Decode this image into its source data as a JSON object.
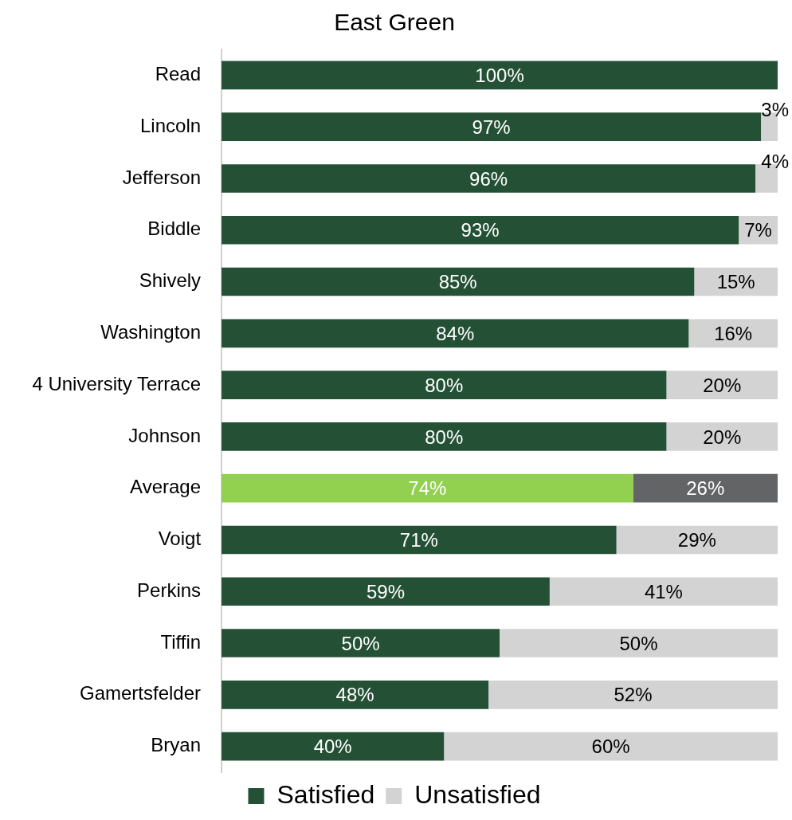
{
  "chart_data": {
    "type": "bar",
    "orientation": "horizontal",
    "stacked": true,
    "title": "East Green",
    "categories": [
      "Read",
      "Lincoln",
      "Jefferson",
      "Biddle",
      "Shively",
      "Washington",
      "4 University Terrace",
      "Johnson",
      "Average",
      "Voigt",
      "Perkins",
      "Tiffin",
      "Gamertsfelder",
      "Bryan"
    ],
    "series": [
      {
        "name": "Satisfied",
        "color": "#245135",
        "colors": [
          "#245135",
          "#245135",
          "#245135",
          "#245135",
          "#245135",
          "#245135",
          "#245135",
          "#245135",
          "#92d050",
          "#245135",
          "#245135",
          "#245135",
          "#245135",
          "#245135"
        ],
        "values": [
          100,
          97,
          96,
          93,
          85,
          84,
          80,
          80,
          74,
          71,
          59,
          50,
          48,
          40
        ],
        "value_labels": [
          "100%",
          "97%",
          "96%",
          "93%",
          "85%",
          "84%",
          "80%",
          "80%",
          "74%",
          "71%",
          "59%",
          "50%",
          "48%",
          "40%"
        ]
      },
      {
        "name": "Unsatisfied",
        "color": "#d3d3d3",
        "colors": [
          "#d3d3d3",
          "#d3d3d3",
          "#d3d3d3",
          "#d3d3d3",
          "#d3d3d3",
          "#d3d3d3",
          "#d3d3d3",
          "#d3d3d3",
          "#636466",
          "#d3d3d3",
          "#d3d3d3",
          "#d3d3d3",
          "#d3d3d3",
          "#d3d3d3"
        ],
        "values": [
          0,
          3,
          4,
          7,
          15,
          16,
          20,
          20,
          26,
          29,
          41,
          50,
          52,
          60
        ],
        "value_labels": [
          null,
          "3%",
          "4%",
          "7%",
          "15%",
          "16%",
          "20%",
          "20%",
          "26%",
          "29%",
          "41%",
          "50%",
          "52%",
          "60%"
        ]
      }
    ],
    "legend": "bottom"
  }
}
